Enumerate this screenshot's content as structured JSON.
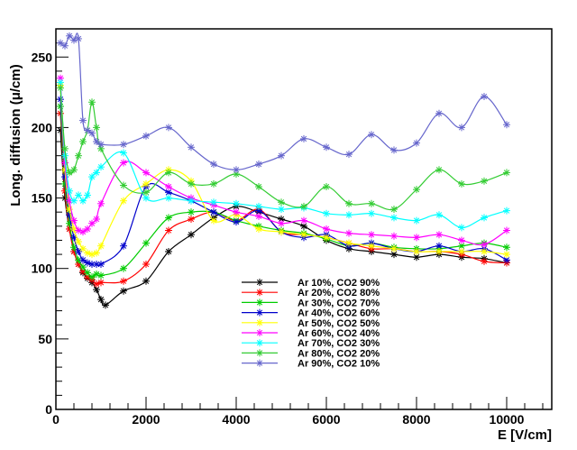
{
  "chart_data": {
    "type": "line",
    "xlabel": "E [V/cm]",
    "ylabel": "Long. diffusion (μ/cm)",
    "xlim": [
      0,
      11000
    ],
    "ylim": [
      0,
      270
    ],
    "xticks": [
      0,
      2000,
      4000,
      6000,
      8000,
      10000
    ],
    "yticks": [
      0,
      50,
      100,
      150,
      200,
      250
    ],
    "grid": false,
    "legend_position": "bottom-center",
    "series": [
      {
        "name": "Ar 10%, CO2 90%",
        "color": "#000000",
        "x": [
          100,
          200,
          300,
          400,
          500,
          600,
          700,
          800,
          900,
          1000,
          1100,
          1500,
          2000,
          2500,
          3000,
          3500,
          4000,
          4500,
          5000,
          5500,
          6000,
          6500,
          7000,
          7500,
          8000,
          8500,
          9000,
          9500,
          10000
        ],
        "y": [
          198,
          150,
          128,
          112,
          103,
          97,
          93,
          90,
          85,
          78,
          74,
          84,
          91,
          112,
          124,
          136,
          144,
          140,
          135,
          130,
          120,
          114,
          112,
          110,
          108,
          110,
          108,
          107,
          104
        ]
      },
      {
        "name": "Ar 20%, CO2 80%",
        "color": "#ff0000",
        "x": [
          100,
          200,
          300,
          400,
          500,
          600,
          700,
          800,
          900,
          1000,
          1500,
          2000,
          2500,
          3000,
          3500,
          4000,
          4500,
          5000,
          5500,
          6000,
          6500,
          7000,
          7500,
          8000,
          8500,
          9000,
          9500,
          10000
        ],
        "y": [
          210,
          155,
          128,
          112,
          103,
          98,
          94,
          92,
          89,
          90,
          91,
          103,
          127,
          135,
          140,
          134,
          142,
          126,
          124,
          122,
          118,
          114,
          114,
          112,
          112,
          110,
          105,
          104
        ]
      },
      {
        "name": "Ar 30%, CO2 70%",
        "color": "#00cc00",
        "x": [
          100,
          200,
          300,
          400,
          500,
          600,
          700,
          800,
          900,
          1000,
          1500,
          2000,
          2500,
          3000,
          3500,
          4000,
          4500,
          5000,
          5500,
          6000,
          6500,
          7000,
          7500,
          8000,
          8500,
          9000,
          9500,
          10000
        ],
        "y": [
          215,
          160,
          132,
          115,
          106,
          101,
          97,
          94,
          96,
          95,
          100,
          118,
          136,
          140,
          140,
          134,
          130,
          127,
          125,
          121,
          116,
          118,
          115,
          114,
          114,
          116,
          118,
          115
        ]
      },
      {
        "name": "Ar 40%, CO2 60%",
        "color": "#0000cc",
        "x": [
          100,
          200,
          300,
          400,
          500,
          600,
          700,
          800,
          900,
          1000,
          1500,
          2000,
          2500,
          3000,
          3500,
          4000,
          4500,
          5000,
          5500,
          6000,
          6500,
          7000,
          7500,
          8000,
          8500,
          9000,
          9500,
          10000
        ],
        "y": [
          220,
          165,
          138,
          122,
          112,
          106,
          104,
          103,
          103,
          103,
          116,
          158,
          154,
          148,
          140,
          133,
          141,
          126,
          122,
          124,
          116,
          118,
          114,
          112,
          116,
          112,
          114,
          106
        ]
      },
      {
        "name": "Ar 50%, CO2 50%",
        "color": "#ffff00",
        "x": [
          100,
          200,
          300,
          400,
          500,
          600,
          700,
          800,
          900,
          1000,
          1500,
          2000,
          2500,
          3000,
          3500,
          4000,
          4500,
          5000,
          5500,
          6000,
          6500,
          7000,
          7500,
          8000,
          8500,
          9000,
          9500,
          10000
        ],
        "y": [
          230,
          170,
          142,
          128,
          119,
          114,
          111,
          110,
          111,
          116,
          148,
          160,
          170,
          162,
          134,
          138,
          128,
          126,
          124,
          122,
          118,
          116,
          114,
          112,
          112,
          112,
          112,
          110
        ]
      },
      {
        "name": "Ar 60%, CO2 40%",
        "color": "#ff00ff",
        "x": [
          100,
          200,
          300,
          400,
          500,
          600,
          700,
          800,
          900,
          1000,
          1500,
          2000,
          2500,
          3000,
          3500,
          4000,
          4500,
          5000,
          5500,
          6000,
          6500,
          7000,
          7500,
          8000,
          8500,
          9000,
          9500,
          10000
        ],
        "y": [
          235,
          175,
          148,
          134,
          127,
          126,
          128,
          132,
          135,
          146,
          175,
          168,
          158,
          150,
          145,
          140,
          137,
          132,
          134,
          128,
          125,
          124,
          123,
          122,
          124,
          120,
          117,
          127
        ]
      },
      {
        "name": "Ar 70%, CO2 30%",
        "color": "#00ffff",
        "x": [
          100,
          200,
          300,
          400,
          500,
          600,
          700,
          800,
          900,
          1000,
          1500,
          2000,
          2500,
          3000,
          3500,
          4000,
          4500,
          5000,
          5500,
          6000,
          6500,
          7000,
          7500,
          8000,
          8500,
          9000,
          9500,
          10000
        ],
        "y": [
          232,
          180,
          155,
          148,
          152,
          148,
          152,
          165,
          168,
          172,
          182,
          150,
          150,
          148,
          147,
          146,
          144,
          142,
          143,
          139,
          138,
          139,
          136,
          134,
          138,
          129,
          136,
          141
        ]
      },
      {
        "name": "Ar 80%, CO2 20%",
        "color": "#33cc33",
        "x": [
          100,
          200,
          300,
          400,
          500,
          600,
          700,
          800,
          900,
          1000,
          1500,
          2000,
          2500,
          3000,
          3500,
          4000,
          4500,
          5000,
          5500,
          6000,
          6500,
          7000,
          7500,
          8000,
          8500,
          9000,
          9500,
          10000
        ],
        "y": [
          228,
          185,
          168,
          170,
          180,
          190,
          198,
          218,
          200,
          185,
          159,
          154,
          168,
          160,
          160,
          167,
          158,
          147,
          144,
          158,
          146,
          146,
          142,
          156,
          170,
          160,
          162,
          168
        ]
      },
      {
        "name": "Ar 90%, CO2 10%",
        "color": "#6666cc",
        "x": [
          100,
          200,
          300,
          400,
          500,
          600,
          700,
          800,
          900,
          1000,
          1500,
          2000,
          2500,
          3000,
          3500,
          4000,
          4500,
          5000,
          5500,
          6000,
          6500,
          7000,
          7500,
          8000,
          8500,
          9000,
          9500,
          10000
        ],
        "y": [
          260,
          258,
          265,
          262,
          263,
          205,
          198,
          196,
          190,
          188,
          188,
          194,
          200,
          186,
          174,
          170,
          174,
          180,
          192,
          186,
          181,
          195,
          184,
          189,
          210,
          200,
          222,
          202
        ]
      }
    ]
  }
}
